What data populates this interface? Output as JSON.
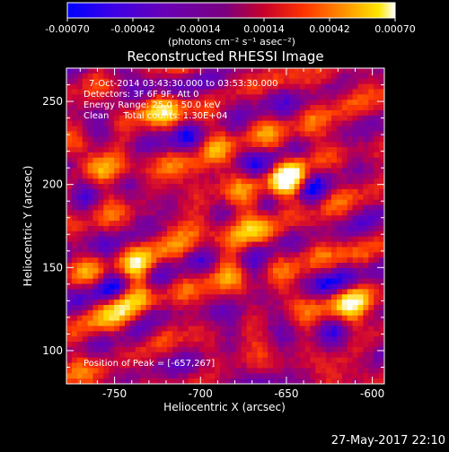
{
  "colorbar": {
    "ticks": [
      "-0.00070",
      "-0.00042",
      "-0.00014",
      "0.00014",
      "0.00042",
      "0.00070"
    ],
    "unit_label": "(photons cm⁻² s⁻¹ asec⁻²)"
  },
  "chart_data": {
    "type": "heatmap",
    "title": "Reconstructed RHESSI Image",
    "xlabel": "Heliocentric X (arcsec)",
    "ylabel": "Heliocentric Y (arcsec)",
    "xlim": [
      -778,
      -593
    ],
    "ylim": [
      80,
      270
    ],
    "x_ticks": [
      "-750",
      "-700",
      "-650",
      "-600"
    ],
    "y_ticks": [
      "100",
      "150",
      "200",
      "250"
    ],
    "x_tick_values": [
      -750,
      -700,
      -650,
      -600
    ],
    "y_tick_values": [
      100,
      150,
      200,
      250
    ],
    "value_range": [
      -0.0007,
      0.0007
    ],
    "colormap": [
      "#0000ff",
      "#5a00c8",
      "#7d0096",
      "#c8003c",
      "#ff3c00",
      "#ff9600",
      "#ffdc00",
      "#ffffff"
    ],
    "annotations": [
      "7-Oct-2014 03:43:30.000 to 03:53:30.000",
      "Detectors: 3F 6F 9F, Att 0",
      "Energy Range: 25.0 - 50.0 keV",
      "Clean     Total counts: 1.30E+04"
    ],
    "peak_label": "Position of Peak = [-657,267]",
    "peak_position": [
      -657,
      267
    ]
  },
  "footer": {
    "timestamp": "27-May-2017 22:10"
  }
}
